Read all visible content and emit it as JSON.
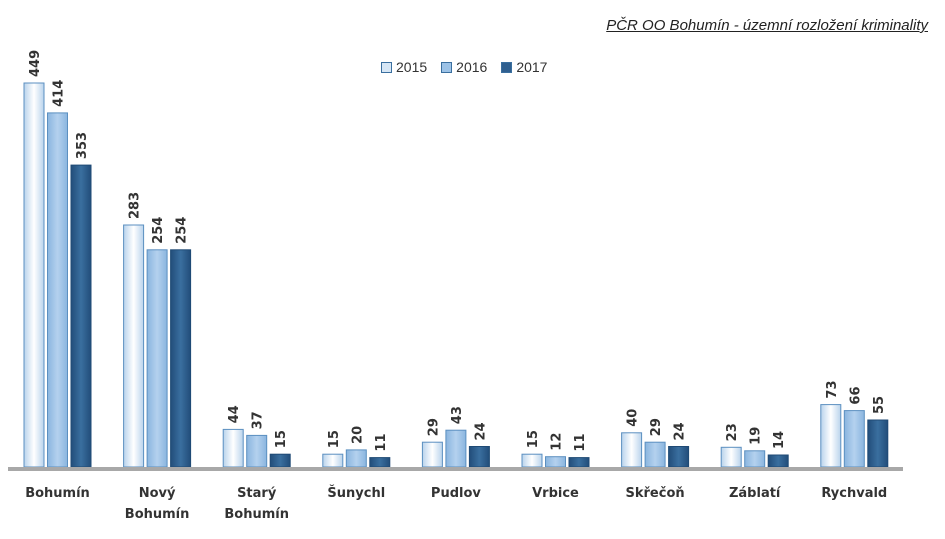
{
  "title": "PČR OO Bohumín - územní rozložení kriminality",
  "legend": [
    {
      "label": "2015",
      "color": "#d6e6f5"
    },
    {
      "label": "2016",
      "color": "#9cc2e6"
    },
    {
      "label": "2017",
      "color": "#2f5f8f"
    }
  ],
  "chart_data": {
    "type": "bar",
    "title": "PČR OO Bohumín - územní rozložení kriminality",
    "categories": [
      "Bohumín",
      "Nový Bohumín",
      "Starý Bohumín",
      "Šunychl",
      "Pudlov",
      "Vrbice",
      "Skřečoň",
      "Záblatí",
      "Rychvald"
    ],
    "category_lines": [
      [
        "Bohumín"
      ],
      [
        "Nový",
        "Bohumín"
      ],
      [
        "Starý",
        "Bohumín"
      ],
      [
        "Šunychl"
      ],
      [
        "Pudlov"
      ],
      [
        "Vrbice"
      ],
      [
        "Skřečoň"
      ],
      [
        "Záblatí"
      ],
      [
        "Rychvald"
      ]
    ],
    "series": [
      {
        "name": "2015",
        "values": [
          449,
          283,
          44,
          15,
          29,
          15,
          40,
          23,
          73
        ]
      },
      {
        "name": "2016",
        "values": [
          414,
          254,
          37,
          20,
          43,
          12,
          29,
          19,
          66
        ]
      },
      {
        "name": "2017",
        "values": [
          353,
          254,
          15,
          11,
          24,
          11,
          24,
          14,
          55
        ]
      }
    ],
    "ylim": [
      0,
      449
    ],
    "grid": false,
    "legend_position": "top-center",
    "data_labels": true
  }
}
